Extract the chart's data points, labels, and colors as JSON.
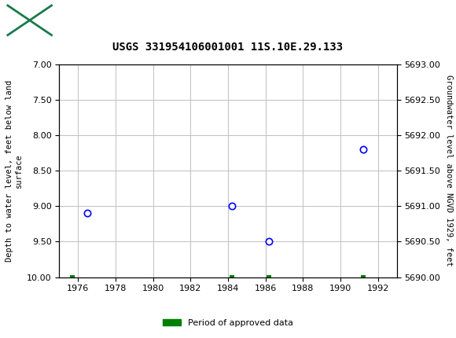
{
  "title": "USGS 331954106001001 11S.10E.29.133",
  "header_bg_color": "#1a7a4a",
  "plot_bg_color": "#ffffff",
  "grid_color": "#c0c0c0",
  "data_points": [
    {
      "year": 1976.5,
      "depth": 9.1
    },
    {
      "year": 1984.2,
      "depth": 9.0
    },
    {
      "year": 1986.2,
      "depth": 9.5
    },
    {
      "year": 1991.2,
      "depth": 8.2
    }
  ],
  "approved_markers": [
    {
      "year": 1975.7,
      "depth": 10.0
    },
    {
      "year": 1984.2,
      "depth": 10.0
    },
    {
      "year": 1986.2,
      "depth": 10.0
    },
    {
      "year": 1991.2,
      "depth": 10.0
    }
  ],
  "xlim": [
    1975,
    1993
  ],
  "xticks": [
    1976,
    1978,
    1980,
    1982,
    1984,
    1986,
    1988,
    1990,
    1992
  ],
  "ylim_depth": [
    10.0,
    7.0
  ],
  "yticks_depth": [
    7.0,
    7.5,
    8.0,
    8.5,
    9.0,
    9.5,
    10.0
  ],
  "ylim_elev": [
    5690.0,
    5693.0
  ],
  "yticks_elev": [
    5690.0,
    5690.5,
    5691.0,
    5691.5,
    5692.0,
    5692.5,
    5693.0
  ],
  "ylabel_left": "Depth to water level, feet below land\nsurface",
  "ylabel_right": "Groundwater level above NGVD 1929, feet",
  "marker_color": "#0000ff",
  "approved_color": "#008000",
  "legend_label": "Period of approved data"
}
